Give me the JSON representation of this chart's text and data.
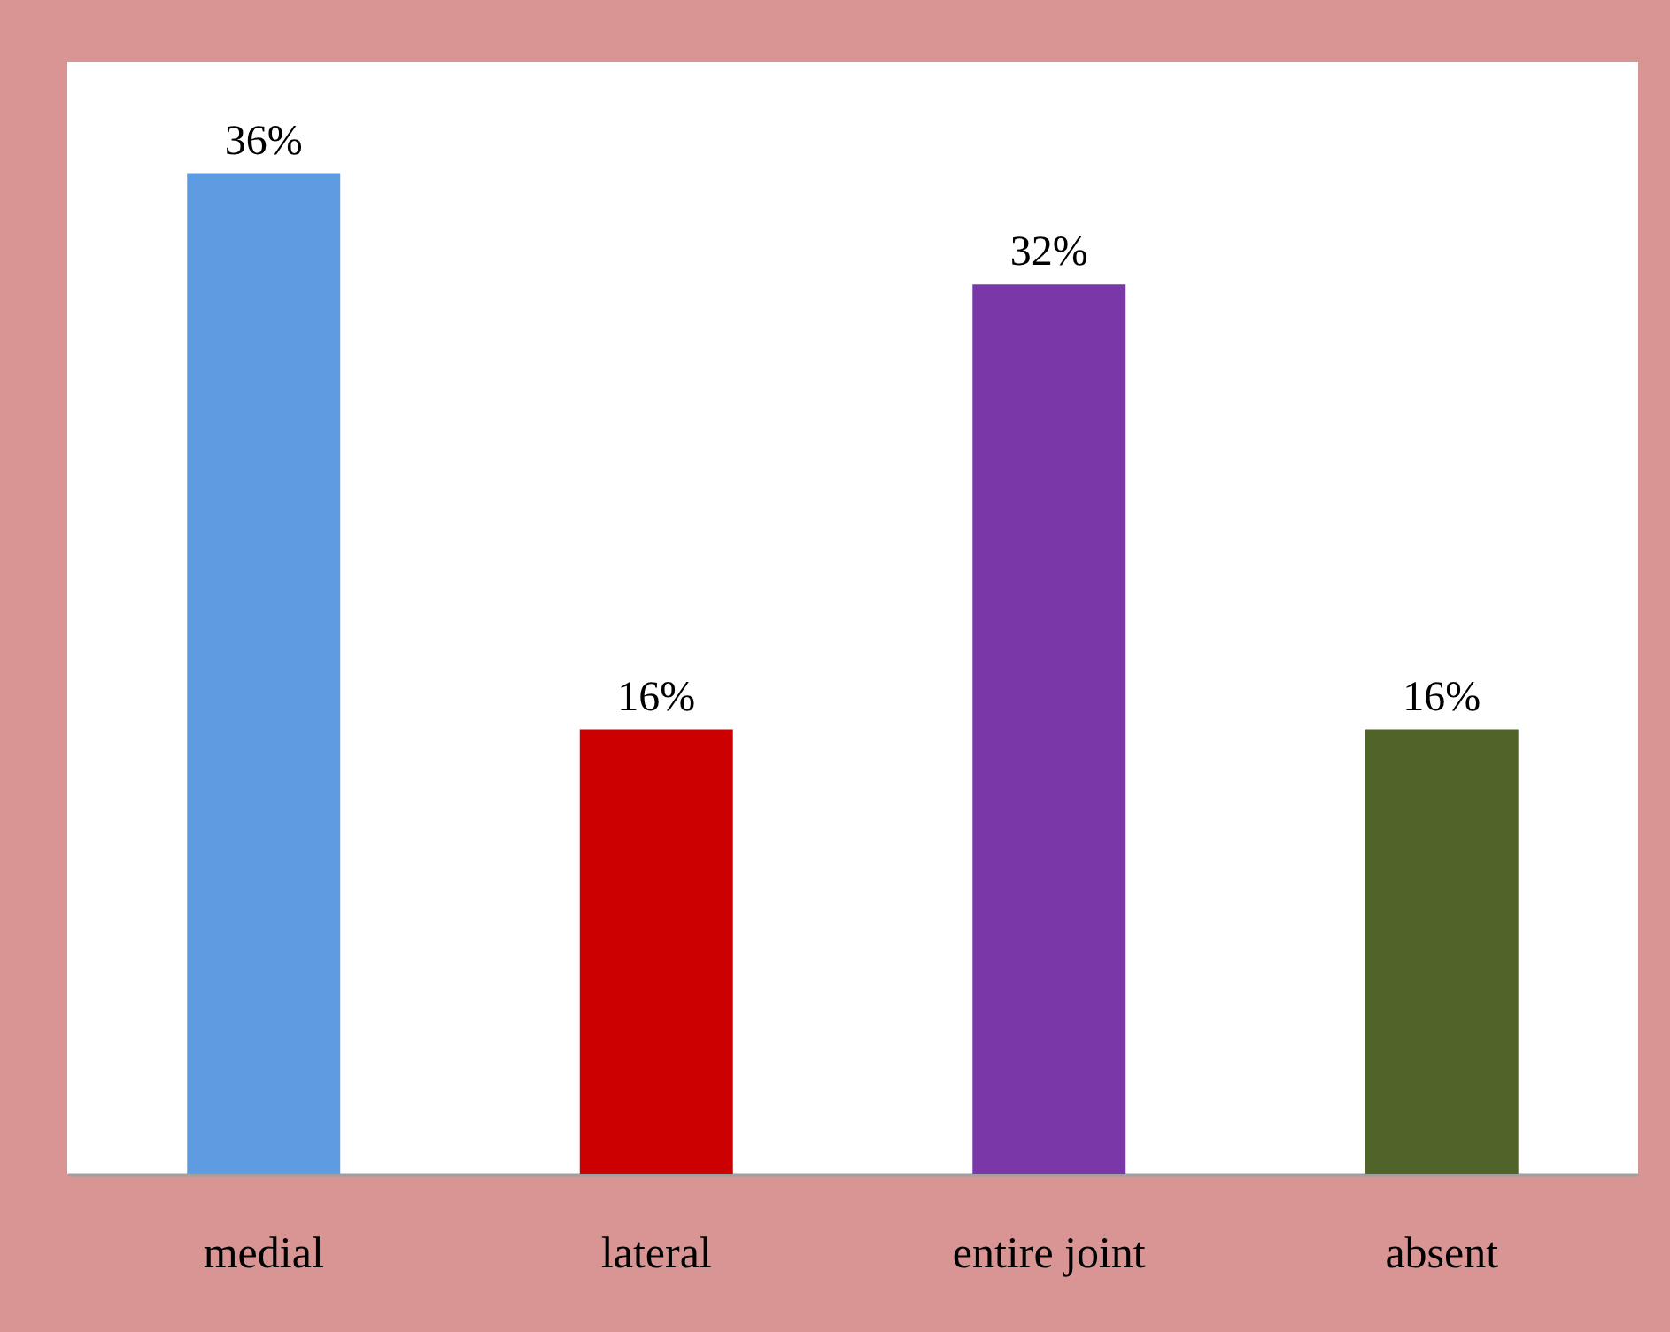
{
  "chart_data": {
    "type": "bar",
    "categories": [
      "medial",
      "lateral",
      "entire joint",
      "absent"
    ],
    "values": [
      36,
      16,
      32,
      16
    ],
    "colors": [
      "#5e9be0",
      "#cc0000",
      "#7a37a8",
      "#506328"
    ],
    "value_labels": [
      "36%",
      "16%",
      "32%",
      "16%"
    ],
    "ylim": [
      0,
      40
    ],
    "tick_labels": "x"
  }
}
